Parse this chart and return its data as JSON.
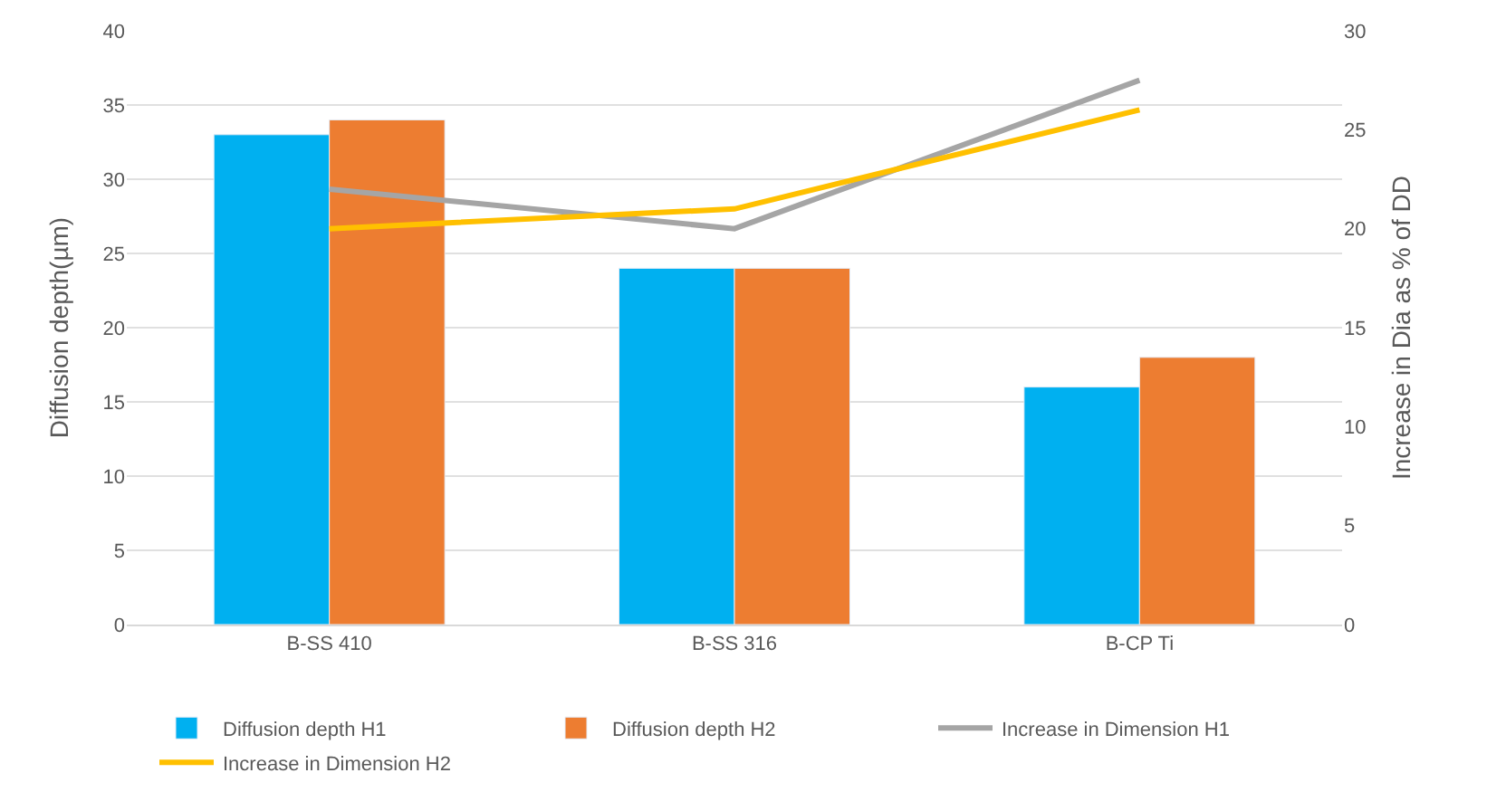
{
  "chart_data": {
    "type": "bar",
    "ylabel": "Diffusion depth(µm)",
    "y2label": "Increase in Dia as % of DD",
    "categories": [
      "B-SS 410",
      "B-SS 316",
      "B-CP Ti"
    ],
    "series": [
      {
        "name": "Diffusion depth H1",
        "color": "#00b0f0",
        "values": [
          33,
          24,
          16
        ]
      },
      {
        "name": "Diffusion depth H2",
        "color": "#ed7d31",
        "values": [
          34,
          24,
          18
        ]
      },
      {
        "name": "Increase in Dimension H1",
        "color": "#a5a5a5",
        "type": "line",
        "axis": "y2",
        "values": [
          22,
          20,
          27.5
        ]
      },
      {
        "name": "Increase in Dimension H2",
        "color": "#ffc000",
        "type": "line",
        "axis": "y2",
        "values": [
          20,
          21,
          26
        ]
      }
    ],
    "ylim": [
      0,
      40
    ],
    "yticks": [
      0,
      5,
      10,
      15,
      20,
      25,
      30,
      35,
      40
    ],
    "y2lim": [
      0,
      30
    ],
    "y2ticks": [
      0,
      5,
      10,
      15,
      20,
      25,
      30
    ],
    "grid": "y",
    "legend": "bottom",
    "marker": "none",
    "line_style": "solid"
  }
}
